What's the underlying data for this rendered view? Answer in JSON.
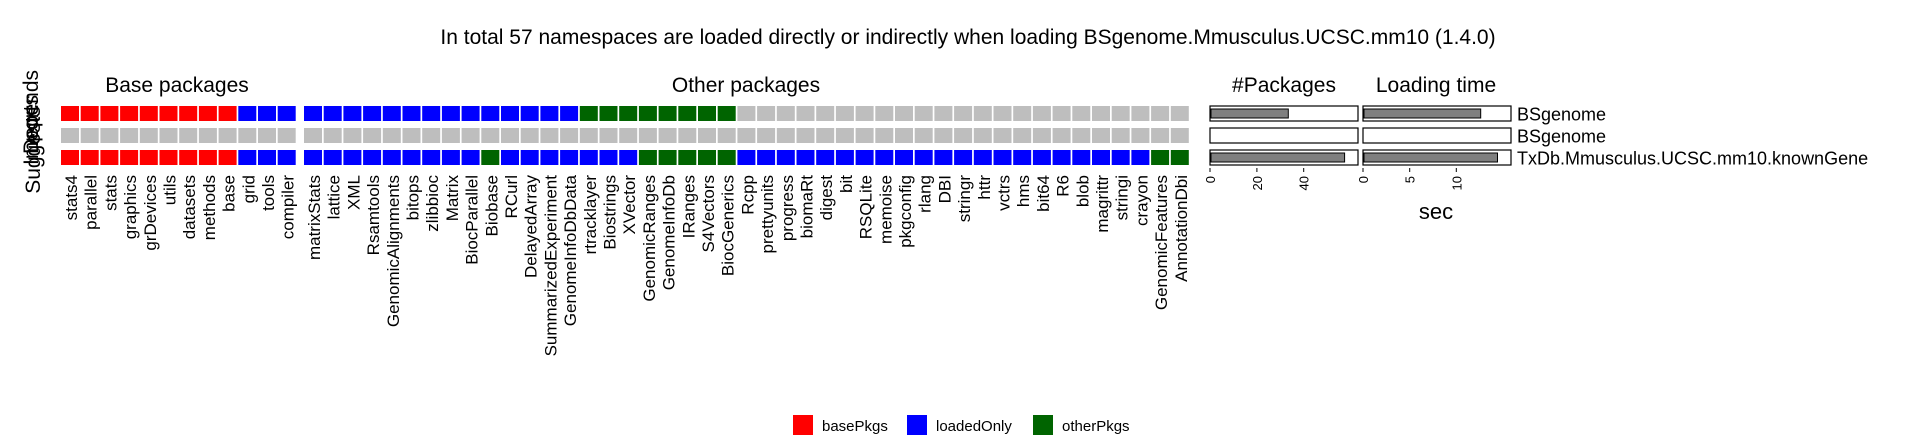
{
  "title": "In total 57 namespaces are loaded directly or indirectly when loading BSgenome.Mmusculus.UCSC.mm10 (1.4.0)",
  "panels": {
    "base": "Base packages",
    "other": "Other packages",
    "npkg": "#Packages",
    "time": "Loading time"
  },
  "row_labels": [
    "Depends",
    "Imports",
    "Suggests"
  ],
  "legend": [
    {
      "key": "basePkgs",
      "label": "basePkgs",
      "color": "#FF0000"
    },
    {
      "key": "loadedOnly",
      "label": "loadedOnly",
      "color": "#0000FF"
    },
    {
      "key": "otherPkgs",
      "label": "otherPkgs",
      "color": "#006400"
    }
  ],
  "chart_data": {
    "type": "heatmap",
    "colors": {
      "basePkgs": "#FF0000",
      "loadedOnly": "#0000FF",
      "otherPkgs": "#006400",
      "none": "#BEBEBE"
    },
    "base_packages": [
      {
        "name": "stats4",
        "rows": [
          "basePkgs",
          "none",
          "basePkgs"
        ]
      },
      {
        "name": "parallel",
        "rows": [
          "basePkgs",
          "none",
          "basePkgs"
        ]
      },
      {
        "name": "stats",
        "rows": [
          "basePkgs",
          "none",
          "basePkgs"
        ]
      },
      {
        "name": "graphics",
        "rows": [
          "basePkgs",
          "none",
          "basePkgs"
        ]
      },
      {
        "name": "grDevices",
        "rows": [
          "basePkgs",
          "none",
          "basePkgs"
        ]
      },
      {
        "name": "utils",
        "rows": [
          "basePkgs",
          "none",
          "basePkgs"
        ]
      },
      {
        "name": "datasets",
        "rows": [
          "basePkgs",
          "none",
          "basePkgs"
        ]
      },
      {
        "name": "methods",
        "rows": [
          "basePkgs",
          "none",
          "basePkgs"
        ]
      },
      {
        "name": "base",
        "rows": [
          "basePkgs",
          "none",
          "basePkgs"
        ]
      },
      {
        "name": "grid",
        "rows": [
          "loadedOnly",
          "none",
          "loadedOnly"
        ]
      },
      {
        "name": "tools",
        "rows": [
          "loadedOnly",
          "none",
          "loadedOnly"
        ]
      },
      {
        "name": "compiler",
        "rows": [
          "loadedOnly",
          "none",
          "loadedOnly"
        ]
      }
    ],
    "other_packages": [
      {
        "name": "matrixStats",
        "rows": [
          "loadedOnly",
          "none",
          "loadedOnly"
        ]
      },
      {
        "name": "lattice",
        "rows": [
          "loadedOnly",
          "none",
          "loadedOnly"
        ]
      },
      {
        "name": "XML",
        "rows": [
          "loadedOnly",
          "none",
          "loadedOnly"
        ]
      },
      {
        "name": "Rsamtools",
        "rows": [
          "loadedOnly",
          "none",
          "loadedOnly"
        ]
      },
      {
        "name": "GenomicAlignments",
        "rows": [
          "loadedOnly",
          "none",
          "loadedOnly"
        ]
      },
      {
        "name": "bitops",
        "rows": [
          "loadedOnly",
          "none",
          "loadedOnly"
        ]
      },
      {
        "name": "zlibbioc",
        "rows": [
          "loadedOnly",
          "none",
          "loadedOnly"
        ]
      },
      {
        "name": "Matrix",
        "rows": [
          "loadedOnly",
          "none",
          "loadedOnly"
        ]
      },
      {
        "name": "BiocParallel",
        "rows": [
          "loadedOnly",
          "none",
          "loadedOnly"
        ]
      },
      {
        "name": "Biobase",
        "rows": [
          "loadedOnly",
          "none",
          "otherPkgs"
        ]
      },
      {
        "name": "RCurl",
        "rows": [
          "loadedOnly",
          "none",
          "loadedOnly"
        ]
      },
      {
        "name": "DelayedArray",
        "rows": [
          "loadedOnly",
          "none",
          "loadedOnly"
        ]
      },
      {
        "name": "SummarizedExperiment",
        "rows": [
          "loadedOnly",
          "none",
          "loadedOnly"
        ]
      },
      {
        "name": "GenomeInfoDbData",
        "rows": [
          "loadedOnly",
          "none",
          "loadedOnly"
        ]
      },
      {
        "name": "rtracklayer",
        "rows": [
          "otherPkgs",
          "none",
          "loadedOnly"
        ]
      },
      {
        "name": "Biostrings",
        "rows": [
          "otherPkgs",
          "none",
          "loadedOnly"
        ]
      },
      {
        "name": "XVector",
        "rows": [
          "otherPkgs",
          "none",
          "loadedOnly"
        ]
      },
      {
        "name": "GenomicRanges",
        "rows": [
          "otherPkgs",
          "none",
          "otherPkgs"
        ]
      },
      {
        "name": "GenomeInfoDb",
        "rows": [
          "otherPkgs",
          "none",
          "otherPkgs"
        ]
      },
      {
        "name": "IRanges",
        "rows": [
          "otherPkgs",
          "none",
          "otherPkgs"
        ]
      },
      {
        "name": "S4Vectors",
        "rows": [
          "otherPkgs",
          "none",
          "otherPkgs"
        ]
      },
      {
        "name": "BiocGenerics",
        "rows": [
          "otherPkgs",
          "none",
          "otherPkgs"
        ]
      },
      {
        "name": "Rcpp",
        "rows": [
          "none",
          "none",
          "loadedOnly"
        ]
      },
      {
        "name": "prettyunits",
        "rows": [
          "none",
          "none",
          "loadedOnly"
        ]
      },
      {
        "name": "progress",
        "rows": [
          "none",
          "none",
          "loadedOnly"
        ]
      },
      {
        "name": "biomaRt",
        "rows": [
          "none",
          "none",
          "loadedOnly"
        ]
      },
      {
        "name": "digest",
        "rows": [
          "none",
          "none",
          "loadedOnly"
        ]
      },
      {
        "name": "bit",
        "rows": [
          "none",
          "none",
          "loadedOnly"
        ]
      },
      {
        "name": "RSQLite",
        "rows": [
          "none",
          "none",
          "loadedOnly"
        ]
      },
      {
        "name": "memoise",
        "rows": [
          "none",
          "none",
          "loadedOnly"
        ]
      },
      {
        "name": "pkgconfig",
        "rows": [
          "none",
          "none",
          "loadedOnly"
        ]
      },
      {
        "name": "rlang",
        "rows": [
          "none",
          "none",
          "loadedOnly"
        ]
      },
      {
        "name": "DBI",
        "rows": [
          "none",
          "none",
          "loadedOnly"
        ]
      },
      {
        "name": "stringr",
        "rows": [
          "none",
          "none",
          "loadedOnly"
        ]
      },
      {
        "name": "httr",
        "rows": [
          "none",
          "none",
          "loadedOnly"
        ]
      },
      {
        "name": "vctrs",
        "rows": [
          "none",
          "none",
          "loadedOnly"
        ]
      },
      {
        "name": "hms",
        "rows": [
          "none",
          "none",
          "loadedOnly"
        ]
      },
      {
        "name": "bit64",
        "rows": [
          "none",
          "none",
          "loadedOnly"
        ]
      },
      {
        "name": "R6",
        "rows": [
          "none",
          "none",
          "loadedOnly"
        ]
      },
      {
        "name": "blob",
        "rows": [
          "none",
          "none",
          "loadedOnly"
        ]
      },
      {
        "name": "magrittr",
        "rows": [
          "none",
          "none",
          "loadedOnly"
        ]
      },
      {
        "name": "stringi",
        "rows": [
          "none",
          "none",
          "loadedOnly"
        ]
      },
      {
        "name": "crayon",
        "rows": [
          "none",
          "none",
          "loadedOnly"
        ]
      },
      {
        "name": "GenomicFeatures",
        "rows": [
          "none",
          "none",
          "otherPkgs"
        ]
      },
      {
        "name": "AnnotationDbi",
        "rows": [
          "none",
          "none",
          "otherPkgs"
        ]
      }
    ],
    "bars": {
      "categories": [
        "BSgenome",
        "BSgenome",
        "TxDb.Mmusculus.UCSC.mm10.knownGene"
      ],
      "npackages": {
        "values": [
          33,
          0,
          57
        ],
        "xlim": [
          0,
          60
        ],
        "ticks": [
          "0",
          "20",
          "40"
        ]
      },
      "loading_time": {
        "values": [
          12.5,
          0,
          14.3
        ],
        "xlim": [
          0,
          15
        ],
        "ticks": [
          "0",
          "5",
          "10"
        ],
        "xlabel": "sec"
      }
    }
  }
}
